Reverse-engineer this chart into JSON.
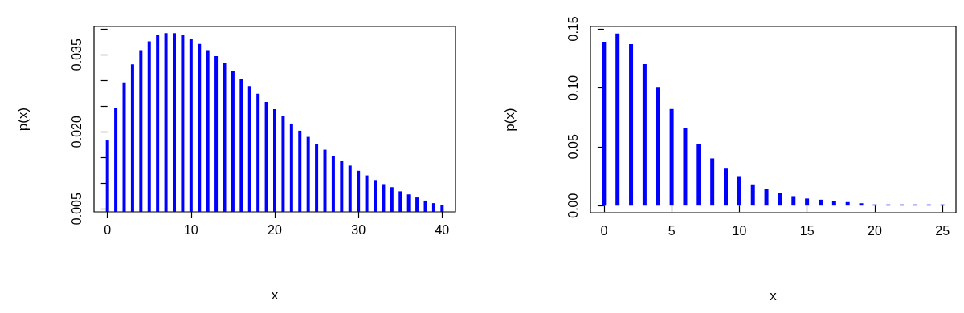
{
  "chart_data": [
    {
      "type": "bar",
      "xlabel": "x",
      "ylabel": "p(x)",
      "x": [
        0,
        1,
        2,
        3,
        4,
        5,
        6,
        7,
        8,
        9,
        10,
        11,
        12,
        13,
        14,
        15,
        16,
        17,
        18,
        19,
        20,
        21,
        22,
        23,
        24,
        25,
        26,
        27,
        28,
        29,
        30,
        31,
        32,
        33,
        34,
        35,
        36,
        37,
        38,
        39,
        40
      ],
      "series": [
        {
          "color": "#0000ff",
          "values": [
            0.0183,
            0.0247,
            0.0296,
            0.0331,
            0.0359,
            0.0376,
            0.0388,
            0.0392,
            0.0392,
            0.0388,
            0.038,
            0.0371,
            0.0359,
            0.0347,
            0.0333,
            0.0319,
            0.0303,
            0.0289,
            0.0274,
            0.0258,
            0.0244,
            0.023,
            0.0216,
            0.0202,
            0.019,
            0.0176,
            0.0165,
            0.0153,
            0.0143,
            0.0134,
            0.0124,
            0.0115,
            0.0106,
            0.0098,
            0.0092,
            0.0084,
            0.0078,
            0.0072,
            0.0066,
            0.0061,
            0.0057
          ]
        }
      ],
      "xlim": [
        -1.6,
        41.6
      ],
      "xticks": [
        0,
        10,
        20,
        30,
        40
      ],
      "ylim": [
        0.0044,
        0.0405
      ],
      "yticks": [
        0.005,
        {
          "value": 0.01,
          "label": null
        },
        {
          "value": 0.015,
          "label": null
        },
        {
          "value": 0.02,
          "label": "0.020"
        },
        {
          "value": 0.025,
          "label": null
        },
        {
          "value": 0.03,
          "label": null
        },
        0.035,
        {
          "value": 0.04,
          "label": null
        }
      ],
      "grid": false
    },
    {
      "type": "bar",
      "xlabel": "x",
      "ylabel": "p(x)",
      "x": [
        0,
        1,
        2,
        3,
        4,
        5,
        6,
        7,
        8,
        9,
        10,
        11,
        12,
        13,
        14,
        15,
        16,
        17,
        18,
        19,
        20,
        21,
        22,
        23,
        24,
        25
      ],
      "series": [
        {
          "color": "#0000ff",
          "values": [
            0.139,
            0.146,
            0.137,
            0.12,
            0.1,
            0.082,
            0.066,
            0.052,
            0.04,
            0.032,
            0.025,
            0.018,
            0.014,
            0.011,
            0.008,
            0.006,
            0.005,
            0.004,
            0.003,
            0.002,
            0.001,
            0.001,
            0.001,
            0.001,
            0.001,
            0.001
          ]
        }
      ],
      "xlim": [
        -1,
        26
      ],
      "xticks": [
        0,
        5,
        10,
        15,
        20,
        25
      ],
      "ylim": [
        -0.006,
        0.152
      ],
      "yticks": [
        {
          "value": 0,
          "label": "0.00"
        },
        0.05,
        {
          "value": 0.1,
          "label": "0.10"
        },
        0.15
      ],
      "grid": false
    }
  ]
}
